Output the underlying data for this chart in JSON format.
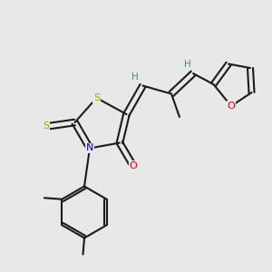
{
  "bg_color": "#e8e8e8",
  "bond_color": "#1a1a1a",
  "S_color": "#b8a000",
  "N_color": "#0000dd",
  "O_color": "#ee0000",
  "H_color": "#508080",
  "lw": 1.5,
  "fs": 8.0,
  "fig_w": 3.0,
  "fig_h": 3.0,
  "dpi": 100,
  "xlim": [
    0,
    10
  ],
  "ylim": [
    0,
    10
  ]
}
